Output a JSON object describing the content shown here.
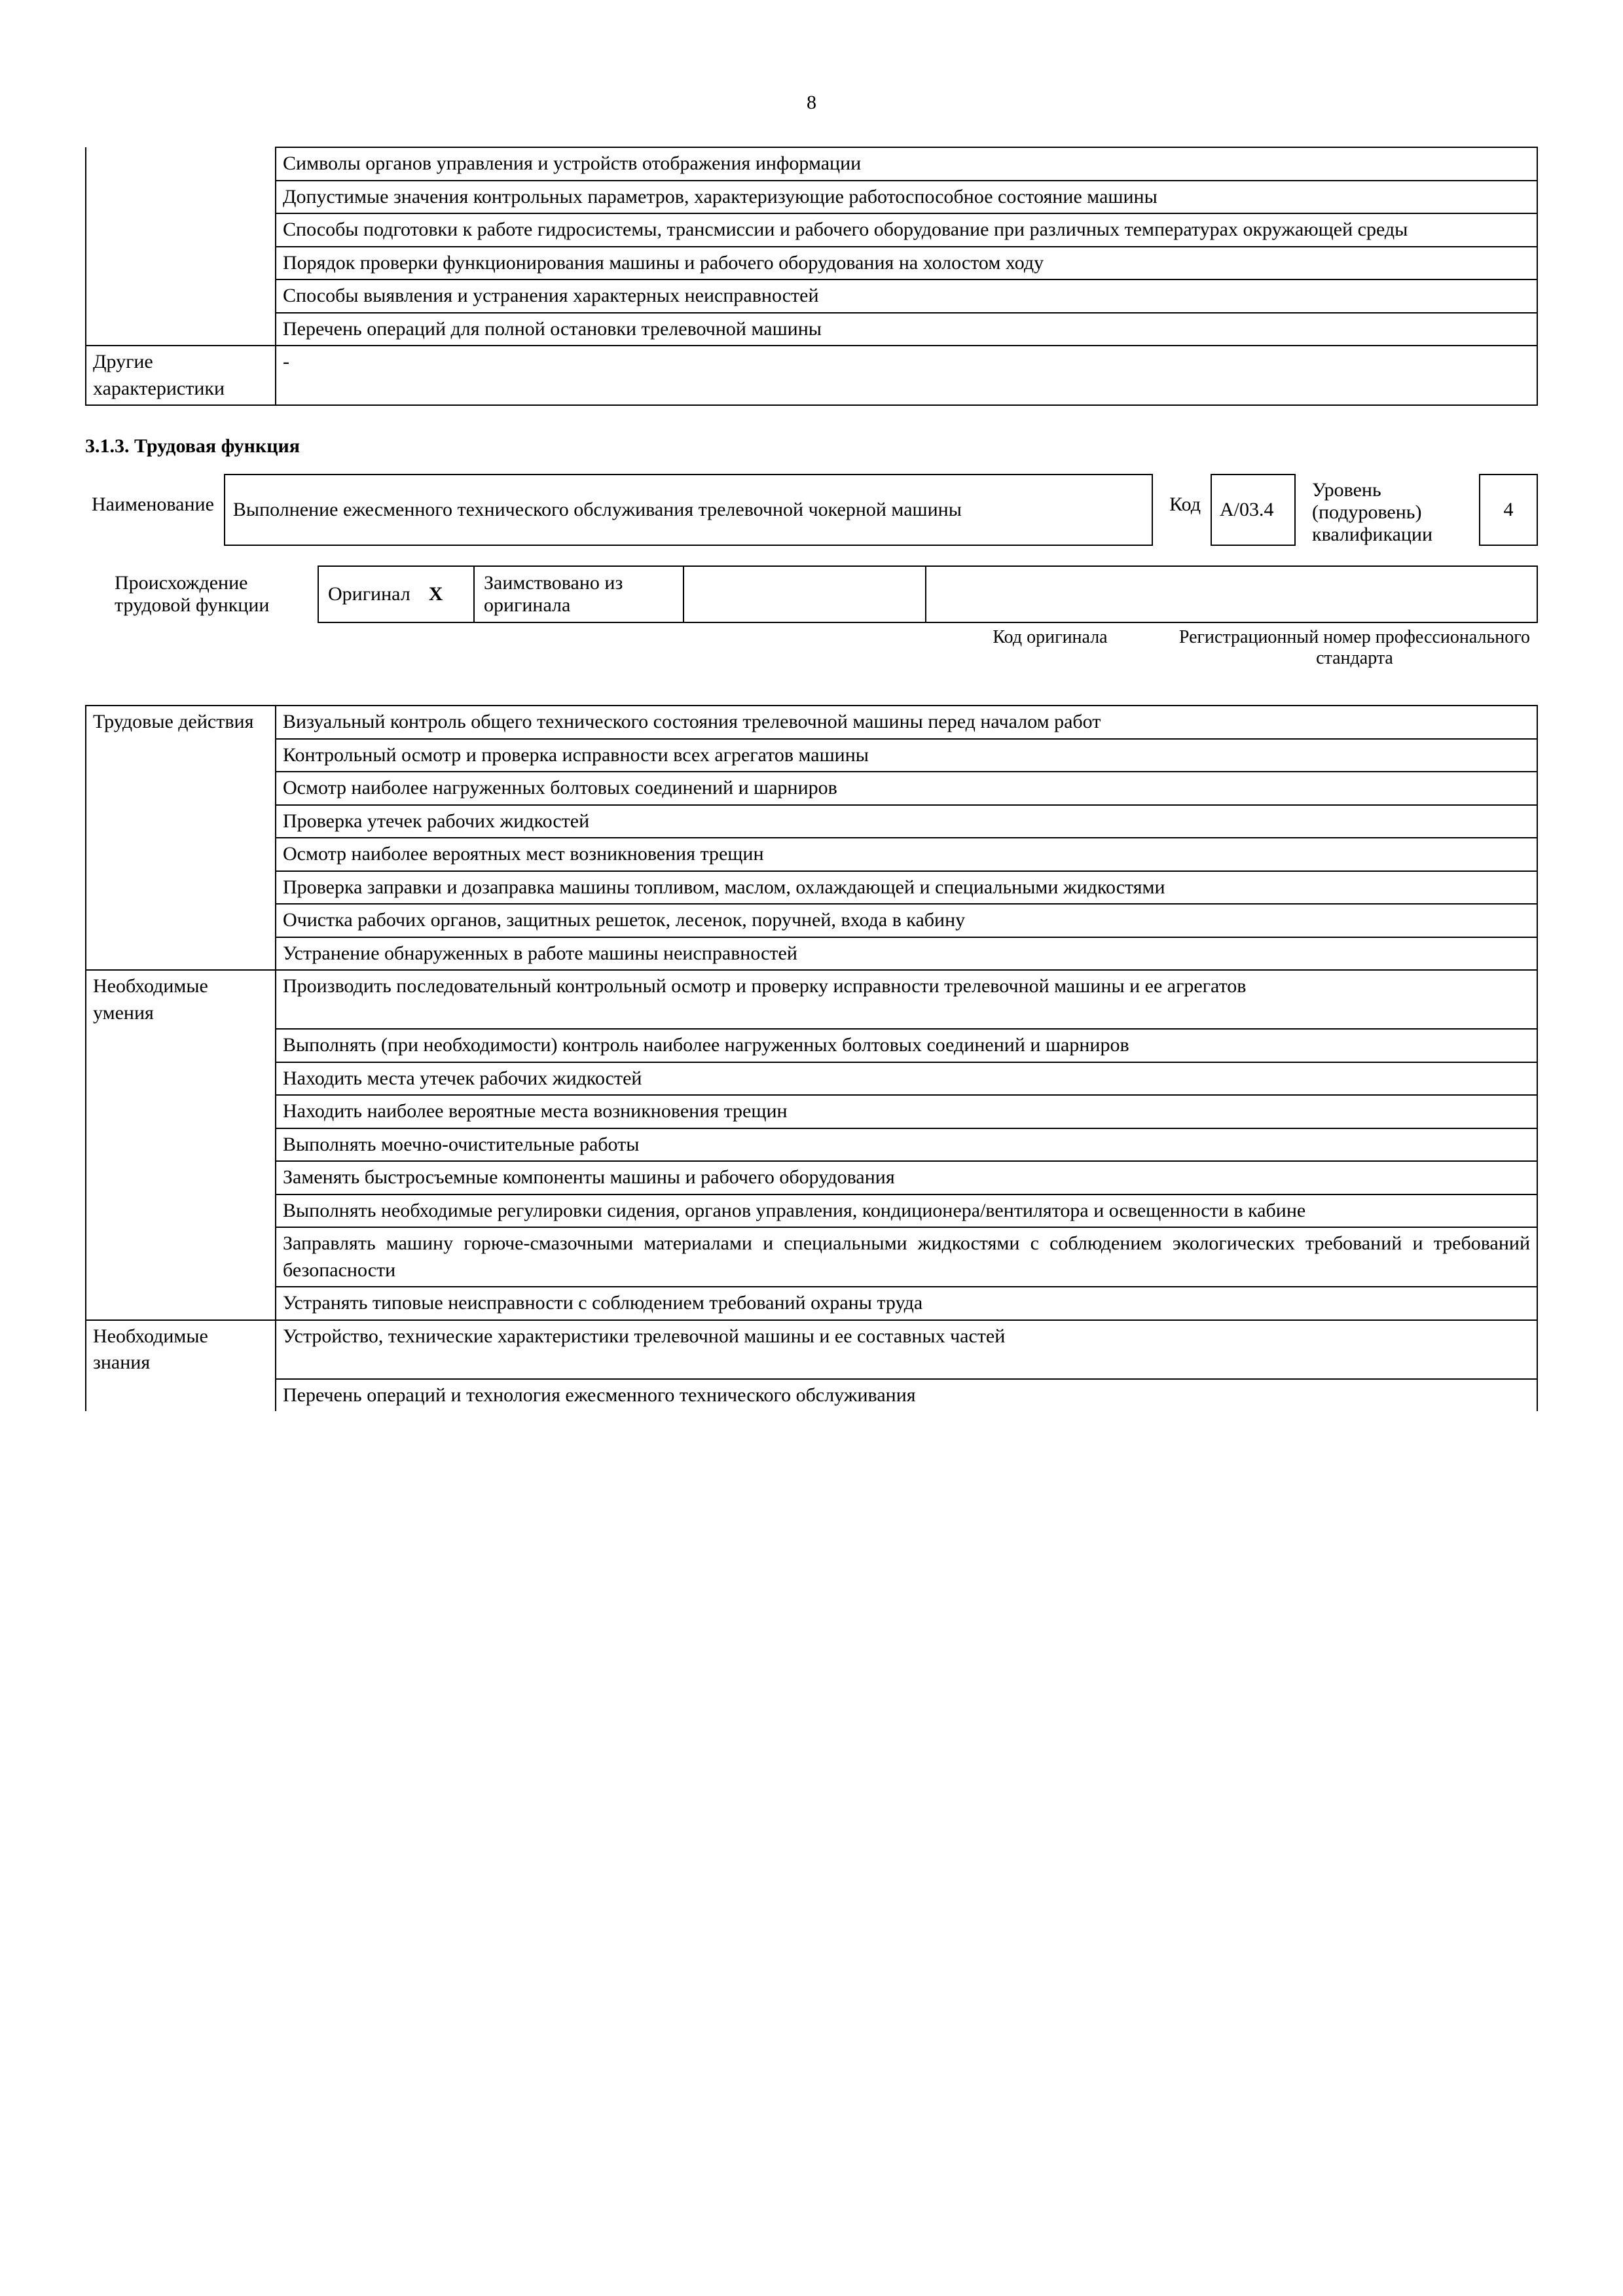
{
  "page_number": "8",
  "top_table": {
    "left_blank_rows": [
      "Символы органов управления и устройств отображения информации",
      "Допустимые значения контрольных параметров, характеризующие работоспособное состояние машины",
      "Способы подготовки к работе гидросистемы, трансмиссии и рабочего оборудование при различных температурах окружающей среды",
      "Порядок проверки функционирования машины и рабочего оборудования на холостом ходу",
      "Способы выявления и устранения характерных неисправностей",
      "Перечень операций для полной остановки трелевочной машины"
    ],
    "other_label": "Другие характеристики",
    "other_value": "-"
  },
  "section_heading": "3.1.3. Трудовая функция",
  "func": {
    "name_label": "Наименование",
    "name_value": "Выполнение ежесменного технического обслуживания трелевочной чокерной машины",
    "code_label": "Код",
    "code_value": "A/03.4",
    "level_label": "Уровень (подуровень) квалификации",
    "level_value": "4"
  },
  "origin": {
    "label": "Происхождение трудовой функции",
    "original_label": "Оригинал",
    "original_mark": "X",
    "borrowed_label": "Заимствовано из оригинала",
    "caption_code": "Код оригинала",
    "caption_reg": "Регистрационный номер профессионального стандарта"
  },
  "main_table": {
    "sections": [
      {
        "label": "Трудовые действия",
        "rows": [
          "Визуальный контроль общего технического состояния трелевочной машины перед началом работ",
          "Контрольный осмотр и проверка исправности всех агрегатов машины",
          "Осмотр наиболее нагруженных болтовых соединений и шарниров",
          "Проверка утечек рабочих жидкостей",
          "Осмотр наиболее вероятных мест возникновения трещин",
          "Проверка заправки и дозаправка машины топливом, маслом, охлаждающей и специальными жидкостями",
          "Очистка рабочих органов, защитных решеток, лесенок, поручней, входа в кабину",
          "Устранение обнаруженных в работе машины неисправностей"
        ]
      },
      {
        "label": "Необходимые умения",
        "rows": [
          "Производить последовательный контрольный осмотр и проверку исправности трелевочной машины и ее агрегатов",
          "Выполнять (при необходимости) контроль наиболее нагруженных болтовых соединений и шарниров",
          "Находить места утечек рабочих жидкостей",
          "Находить наиболее вероятные места возникновения трещин",
          "Выполнять моечно-очистительные работы",
          "Заменять быстросъемные компоненты машины и рабочего оборудования",
          "Выполнять необходимые регулировки сидения, органов управления, кондиционера/вентилятора и освещенности в кабине",
          "Заправлять машину горюче-смазочными материалами и специальными жидкостями с соблюдением экологических требований и требований безопасности",
          "Устранять типовые неисправности с соблюдением требований охраны труда"
        ]
      },
      {
        "label": "Необходимые знания",
        "rows": [
          "Устройство, технические характеристики трелевочной машины и ее составных частей",
          "Перечень операций и технология ежесменного технического обслуживания"
        ]
      }
    ]
  }
}
